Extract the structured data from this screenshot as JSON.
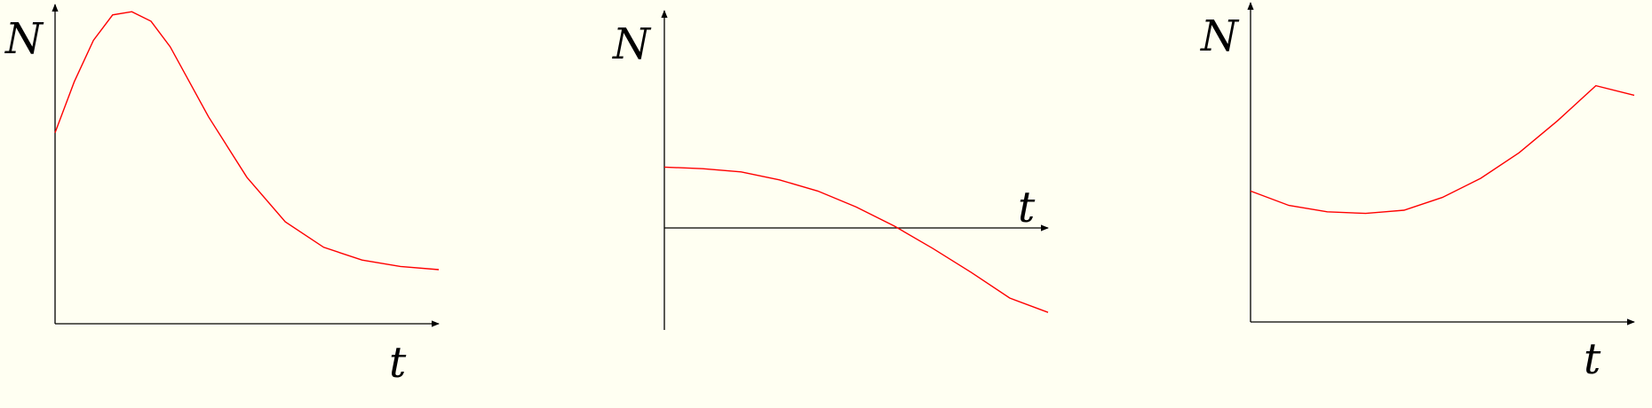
{
  "colors": {
    "background": "#fffff2",
    "axis": "#000000",
    "curve": "#ff0000"
  },
  "chart_data": [
    {
      "type": "line",
      "title": "",
      "xlabel": "t",
      "ylabel": "N",
      "xlim": [
        0,
        10
      ],
      "ylim": [
        0,
        10
      ],
      "x_axis_at_y": 0,
      "grid": false,
      "series": [
        {
          "x": [
            0,
            0.5,
            1.0,
            1.5,
            2.0,
            2.5,
            3.0,
            3.5,
            4.0,
            5.0,
            6.0,
            7.0,
            8.0,
            9.0,
            10.0
          ],
          "y": [
            6.0,
            7.6,
            8.9,
            9.7,
            9.8,
            9.5,
            8.7,
            7.6,
            6.5,
            4.6,
            3.2,
            2.4,
            2.0,
            1.8,
            1.7
          ]
        }
      ]
    },
    {
      "type": "line",
      "title": "",
      "xlabel": "t",
      "ylabel": "N",
      "xlim": [
        0,
        10
      ],
      "ylim": [
        -3.2,
        6.8
      ],
      "x_axis_at_y": 0,
      "grid": false,
      "series": [
        {
          "x": [
            0,
            1,
            2,
            3,
            4,
            5,
            6,
            7,
            8,
            9,
            10
          ],
          "y": [
            1.9,
            1.85,
            1.75,
            1.5,
            1.15,
            0.65,
            0.05,
            -0.65,
            -1.4,
            -2.2,
            -2.65
          ]
        }
      ]
    },
    {
      "type": "line",
      "title": "",
      "xlabel": "t",
      "ylabel": "N",
      "xlim": [
        0,
        10
      ],
      "ylim": [
        0,
        10
      ],
      "x_axis_at_y": 0,
      "grid": false,
      "series": [
        {
          "x": [
            0,
            1,
            2,
            3,
            3.5,
            4,
            5,
            6,
            7,
            8,
            9,
            10
          ],
          "y": [
            4.1,
            3.65,
            3.45,
            3.4,
            3.45,
            3.5,
            3.9,
            4.5,
            5.3,
            6.3,
            7.4,
            7.1
          ]
        }
      ]
    }
  ]
}
